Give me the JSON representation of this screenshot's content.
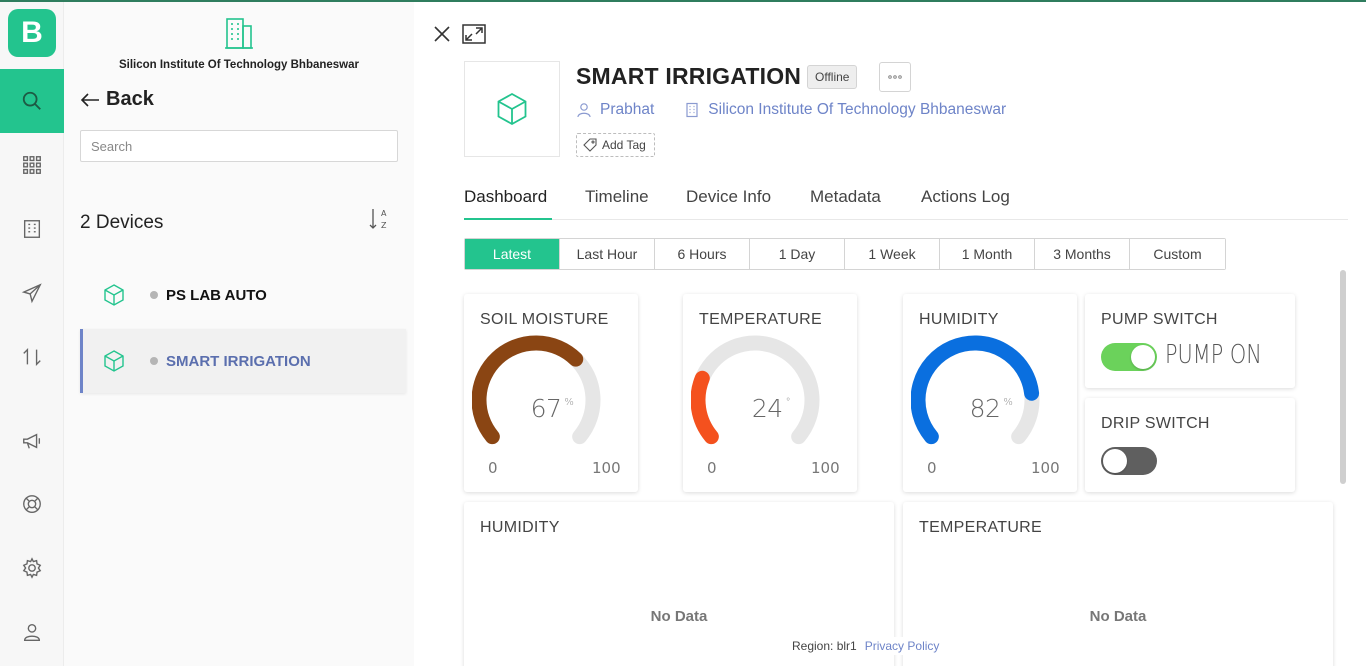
{
  "app": {
    "logo_letter": "B",
    "accent_color": "#23c48e",
    "rail_icons": [
      "search-icon",
      "grid-icon",
      "building-icon",
      "send-icon",
      "exchange-icon",
      "megaphone-icon",
      "lifebuoy-icon",
      "gear-icon",
      "user-icon"
    ]
  },
  "device_panel": {
    "org_name": "Silicon Institute Of Technology Bhbaneswar",
    "back_label": "Back",
    "search_placeholder": "Search",
    "count_label": "2 Devices",
    "sort_icon": "sort-az-icon",
    "devices": [
      {
        "name": "PS LAB AUTO",
        "status": "offline"
      },
      {
        "name": "SMART IRRIGATION",
        "status": "offline",
        "selected": true
      }
    ]
  },
  "device": {
    "title": "SMART IRRIGATION",
    "status_badge": "Offline",
    "owner": "Prabhat",
    "organization": "Silicon Institute Of Technology Bhbaneswar",
    "add_tag_label": "Add Tag"
  },
  "tabs": [
    "Dashboard",
    "Timeline",
    "Device Info",
    "Metadata",
    "Actions Log"
  ],
  "time_ranges": [
    "Latest",
    "Last Hour",
    "6 Hours",
    "1 Day",
    "1 Week",
    "1 Month",
    "3 Months",
    "Custom"
  ],
  "widgets": {
    "soil_moisture": {
      "title": "SOIL MOISTURE",
      "value": 67,
      "unit": "%",
      "min": 0,
      "max": 100,
      "color": "#8a4513"
    },
    "temperature": {
      "title": "TEMPERATURE",
      "value": 24,
      "unit": "°",
      "min": 0,
      "max": 100,
      "color": "#f4511e"
    },
    "humidity": {
      "title": "HUMIDITY",
      "value": 82,
      "unit": "%",
      "min": 0,
      "max": 100,
      "color": "#0a6fdf"
    },
    "pump_switch": {
      "title": "PUMP SWITCH",
      "state": "on",
      "label": "PUMP ON"
    },
    "drip_switch": {
      "title": "DRIP SWITCH",
      "state": "off"
    },
    "humidity_chart": {
      "title": "HUMIDITY",
      "empty_text": "No Data"
    },
    "temperature_chart": {
      "title": "TEMPERATURE",
      "empty_text": "No Data"
    }
  },
  "footer": {
    "region": "Region: blr1",
    "privacy": "Privacy Policy"
  }
}
